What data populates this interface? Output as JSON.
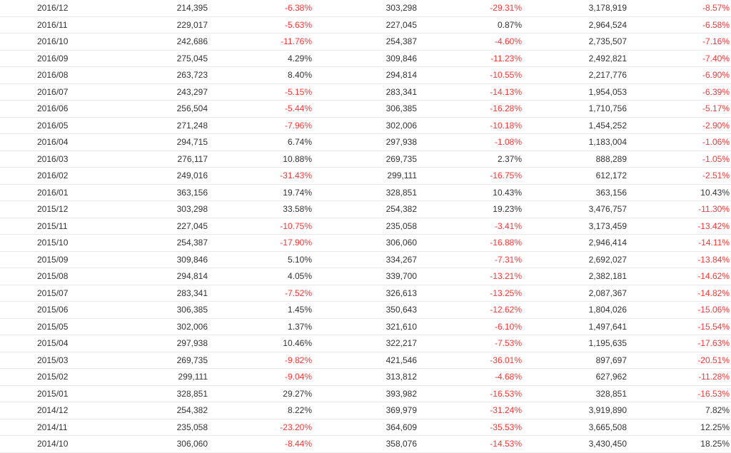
{
  "colors": {
    "negative": "#ff3333",
    "text": "#333333",
    "divider": "#e8e8e8"
  },
  "rows": [
    [
      "2016/12",
      "214,395",
      "-6.38%",
      "303,298",
      "-29.31%",
      "3,178,919",
      "-8.57%"
    ],
    [
      "2016/11",
      "229,017",
      "-5.63%",
      "227,045",
      "0.87%",
      "2,964,524",
      "-6.58%"
    ],
    [
      "2016/10",
      "242,686",
      "-11.76%",
      "254,387",
      "-4.60%",
      "2,735,507",
      "-7.16%"
    ],
    [
      "2016/09",
      "275,045",
      "4.29%",
      "309,846",
      "-11.23%",
      "2,492,821",
      "-7.40%"
    ],
    [
      "2016/08",
      "263,723",
      "8.40%",
      "294,814",
      "-10.55%",
      "2,217,776",
      "-6.90%"
    ],
    [
      "2016/07",
      "243,297",
      "-5.15%",
      "283,341",
      "-14.13%",
      "1,954,053",
      "-6.39%"
    ],
    [
      "2016/06",
      "256,504",
      "-5.44%",
      "306,385",
      "-16.28%",
      "1,710,756",
      "-5.17%"
    ],
    [
      "2016/05",
      "271,248",
      "-7.96%",
      "302,006",
      "-10.18%",
      "1,454,252",
      "-2.90%"
    ],
    [
      "2016/04",
      "294,715",
      "6.74%",
      "297,938",
      "-1.08%",
      "1,183,004",
      "-1.06%"
    ],
    [
      "2016/03",
      "276,117",
      "10.88%",
      "269,735",
      "2.37%",
      "888,289",
      "-1.05%"
    ],
    [
      "2016/02",
      "249,016",
      "-31.43%",
      "299,111",
      "-16.75%",
      "612,172",
      "-2.51%"
    ],
    [
      "2016/01",
      "363,156",
      "19.74%",
      "328,851",
      "10.43%",
      "363,156",
      "10.43%"
    ],
    [
      "2015/12",
      "303,298",
      "33.58%",
      "254,382",
      "19.23%",
      "3,476,757",
      "-11.30%"
    ],
    [
      "2015/11",
      "227,045",
      "-10.75%",
      "235,058",
      "-3.41%",
      "3,173,459",
      "-13.42%"
    ],
    [
      "2015/10",
      "254,387",
      "-17.90%",
      "306,060",
      "-16.88%",
      "2,946,414",
      "-14.11%"
    ],
    [
      "2015/09",
      "309,846",
      "5.10%",
      "334,267",
      "-7.31%",
      "2,692,027",
      "-13.84%"
    ],
    [
      "2015/08",
      "294,814",
      "4.05%",
      "339,700",
      "-13.21%",
      "2,382,181",
      "-14.62%"
    ],
    [
      "2015/07",
      "283,341",
      "-7.52%",
      "326,613",
      "-13.25%",
      "2,087,367",
      "-14.82%"
    ],
    [
      "2015/06",
      "306,385",
      "1.45%",
      "350,643",
      "-12.62%",
      "1,804,026",
      "-15.06%"
    ],
    [
      "2015/05",
      "302,006",
      "1.37%",
      "321,610",
      "-6.10%",
      "1,497,641",
      "-15.54%"
    ],
    [
      "2015/04",
      "297,938",
      "10.46%",
      "322,217",
      "-7.53%",
      "1,195,635",
      "-17.63%"
    ],
    [
      "2015/03",
      "269,735",
      "-9.82%",
      "421,546",
      "-36.01%",
      "897,697",
      "-20.51%"
    ],
    [
      "2015/02",
      "299,111",
      "-9.04%",
      "313,812",
      "-4.68%",
      "627,962",
      "-11.28%"
    ],
    [
      "2015/01",
      "328,851",
      "29.27%",
      "393,982",
      "-16.53%",
      "328,851",
      "-16.53%"
    ],
    [
      "2014/12",
      "254,382",
      "8.22%",
      "369,979",
      "-31.24%",
      "3,919,890",
      "7.82%"
    ],
    [
      "2014/11",
      "235,058",
      "-23.20%",
      "364,609",
      "-35.53%",
      "3,665,508",
      "12.25%"
    ],
    [
      "2014/10",
      "306,060",
      "-8.44%",
      "358,076",
      "-14.53%",
      "3,430,450",
      "18.25%"
    ]
  ]
}
